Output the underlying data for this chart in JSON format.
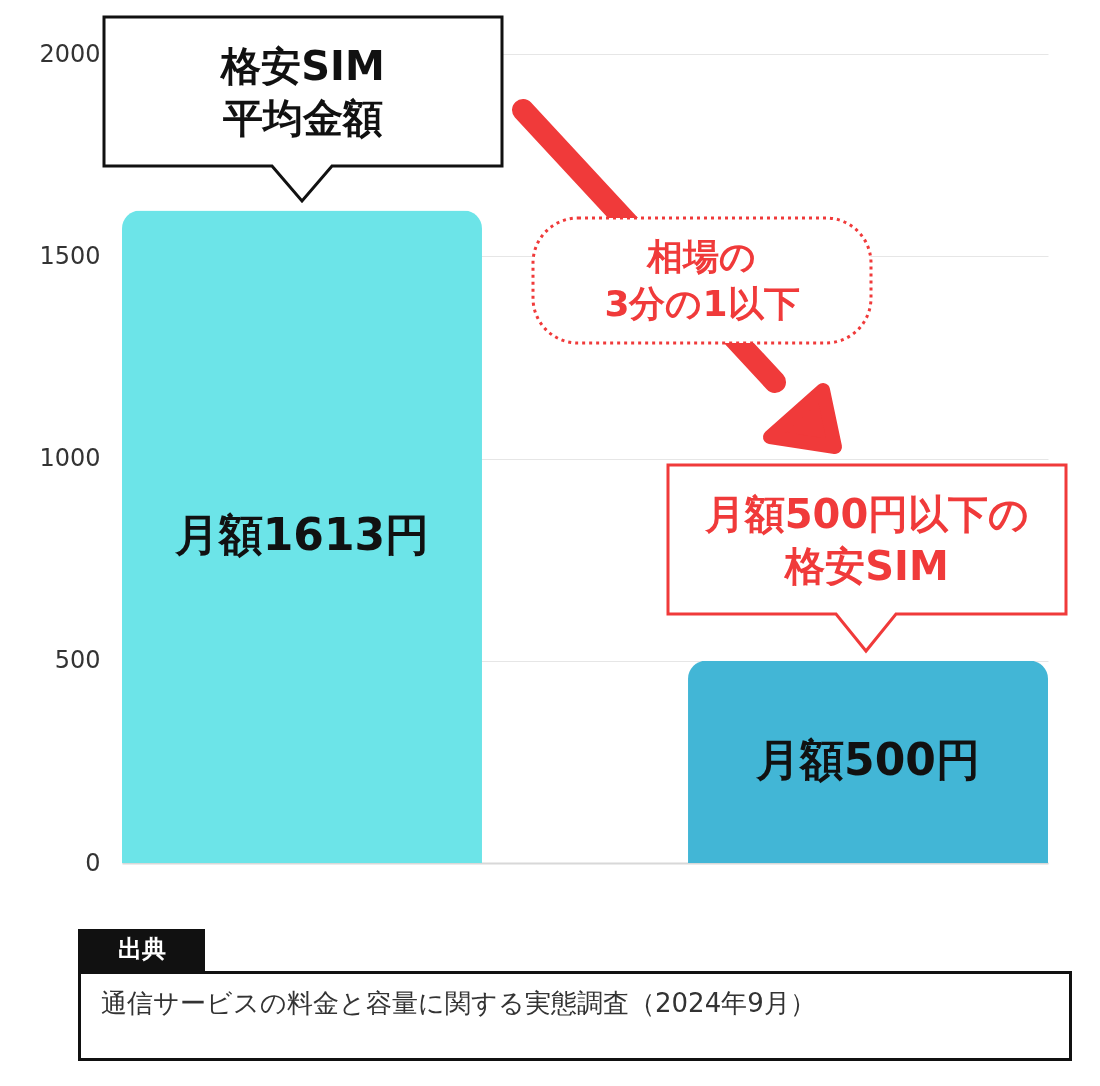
{
  "chart_data": {
    "type": "bar",
    "categories": [
      null,
      null
    ],
    "colors": [
      "#6ce4e8",
      "#42b6d6"
    ],
    "values": [
      1613,
      500
    ],
    "value_labels": [
      "月額1613円",
      "月額500円"
    ],
    "ylim": [
      0,
      2000
    ],
    "yticks": [
      0,
      500,
      1000,
      1500,
      2000
    ],
    "grid": "y",
    "tick_labels": "y",
    "annotations": [
      "格安SIM\n平均金額",
      "相場の\n3分の1以下",
      "月額500円以下の格安SIM",
      "出典",
      "通信サービスの料金と容量に関する実態調査（2024年9月）"
    ]
  }
}
